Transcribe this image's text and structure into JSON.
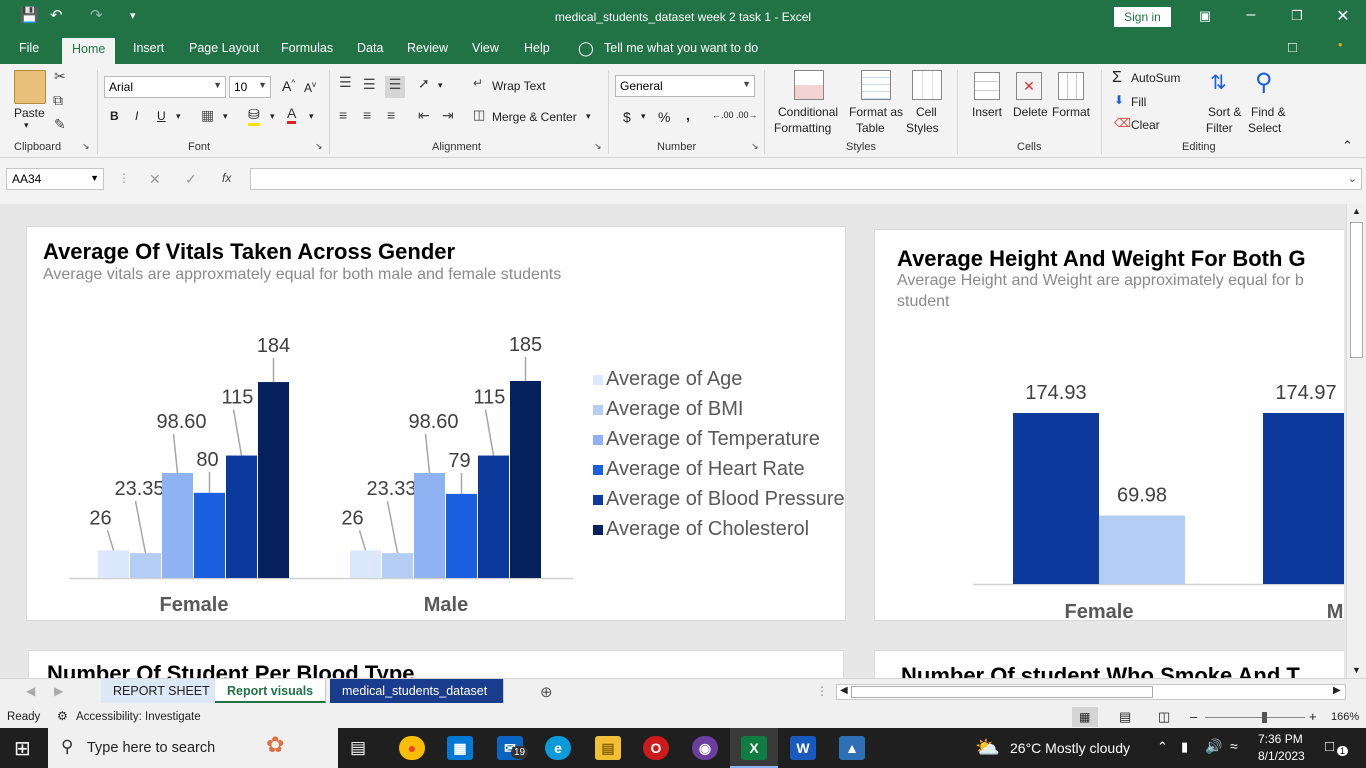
{
  "window": {
    "title": "medical_students_dataset week 2 task 1  -  Excel",
    "sign_in": "Sign in"
  },
  "ribbon_tabs": [
    "File",
    "Home",
    "Insert",
    "Page Layout",
    "Formulas",
    "Data",
    "Review",
    "View",
    "Help"
  ],
  "tell_me": "Tell me what you want to do",
  "ribbon": {
    "paste": "Paste",
    "font_name": "Arial",
    "font_size": "10",
    "wrap_text": "Wrap Text",
    "merge_center": "Merge & Center",
    "number_format": "General",
    "conditional_formatting": "Conditional",
    "conditional_formatting2": "Formatting",
    "format_as_table": "Format as",
    "format_as_table2": "Table",
    "cell_styles": "Cell",
    "cell_styles2": "Styles",
    "insert": "Insert",
    "delete": "Delete",
    "format": "Format",
    "autosum": "AutoSum",
    "fill": "Fill",
    "clear": "Clear",
    "sort_filter": "Sort &",
    "sort_filter2": "Filter",
    "find_select": "Find &",
    "find_select2": "Select",
    "groups": {
      "clipboard": "Clipboard",
      "font": "Font",
      "alignment": "Alignment",
      "number": "Number",
      "styles": "Styles",
      "cells": "Cells",
      "editing": "Editing"
    },
    "bold": "B",
    "italic": "I",
    "underline": "U"
  },
  "formula_bar": {
    "name_box": "AA34",
    "fx": "fx",
    "value": ""
  },
  "chart1": {
    "title": "Average Of Vitals Taken Across Gender",
    "subtitle": "Average vitals are approxmately equal for both male and female students"
  },
  "chart2": {
    "title": "Average Height And Weight For Both G",
    "subtitle_line1": "Average Height and Weight are approximately equal for b",
    "subtitle_line2": "student"
  },
  "chart3": {
    "title": "Number Of Student Per Blood Type"
  },
  "chart4": {
    "title": "Number Of student Who Smoke And T"
  },
  "chart_data": [
    {
      "type": "bar",
      "categories": [
        "Female",
        "Male"
      ],
      "series": [
        {
          "name": "Average of Age",
          "values": [
            26,
            26
          ],
          "labels": [
            "26",
            "26"
          ],
          "color": "#dce8fb"
        },
        {
          "name": "Average of BMI",
          "values": [
            23.35,
            23.33
          ],
          "labels": [
            "23.35",
            "23.33"
          ],
          "color": "#b4cdf5"
        },
        {
          "name": "Average of Temperature",
          "values": [
            98.6,
            98.6
          ],
          "labels": [
            "98.60",
            "98.60"
          ],
          "color": "#8fb3f2"
        },
        {
          "name": "Average of Heart Rate",
          "values": [
            80,
            79
          ],
          "labels": [
            "80",
            "79"
          ],
          "color": "#1a5fe0"
        },
        {
          "name": "Average of Blood Pressure",
          "values": [
            115,
            115
          ],
          "labels": [
            "115",
            "115"
          ],
          "color": "#0c3a9c"
        },
        {
          "name": "Average of Cholesterol",
          "values": [
            184,
            185
          ],
          "labels": [
            "184",
            "185"
          ],
          "color": "#05215e"
        }
      ],
      "legend": "right"
    },
    {
      "type": "bar",
      "categories": [
        "Female",
        "Male"
      ],
      "series": [
        {
          "values": [
            174.93,
            174.97
          ],
          "labels": [
            "174.93",
            "174.97"
          ],
          "color": "#0c3a9c"
        },
        {
          "values": [
            69.98,
            null
          ],
          "labels": [
            "69.98",
            ""
          ],
          "color": "#b4cdf5"
        }
      ]
    }
  ],
  "sheet_tabs": [
    "REPORT SHEET",
    "Report visuals",
    "medical_students_dataset"
  ],
  "status": {
    "ready": "Ready",
    "accessibility": "Accessibility: Investigate",
    "zoom": "166%"
  },
  "taskbar": {
    "search": "Type here to search",
    "weather": "26°C  Mostly cloudy",
    "time": "7:36 PM",
    "date": "8/1/2023",
    "mail_badge": "19",
    "notif_badge": "1"
  }
}
